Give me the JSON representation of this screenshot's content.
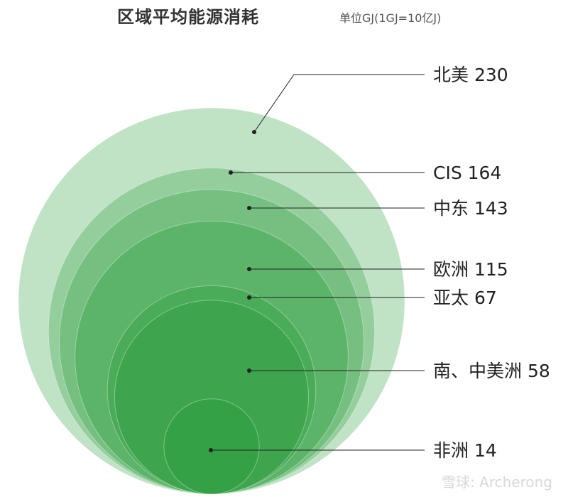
{
  "header": {
    "title": "区域平均能源消耗",
    "unit": "单位GJ(1GJ=10亿J)"
  },
  "watermark": "雪球: Archerong",
  "colors": {
    "circle_fill": "#2e9e3f",
    "leader_line": "#222222",
    "label_text": "#222222"
  },
  "chart_data": {
    "type": "bubble",
    "title": "区域平均能源消耗",
    "subtitle": "单位GJ(1GJ=10亿J)",
    "unit": "GJ",
    "series": [
      {
        "name": "北美",
        "value": 230
      },
      {
        "name": "CIS",
        "value": 164
      },
      {
        "name": "中东",
        "value": 143
      },
      {
        "name": "欧洲",
        "value": 115
      },
      {
        "name": "亚太",
        "value": 67
      },
      {
        "name": "南、中美洲",
        "value": 58
      },
      {
        "name": "非洲",
        "value": 14
      }
    ]
  }
}
